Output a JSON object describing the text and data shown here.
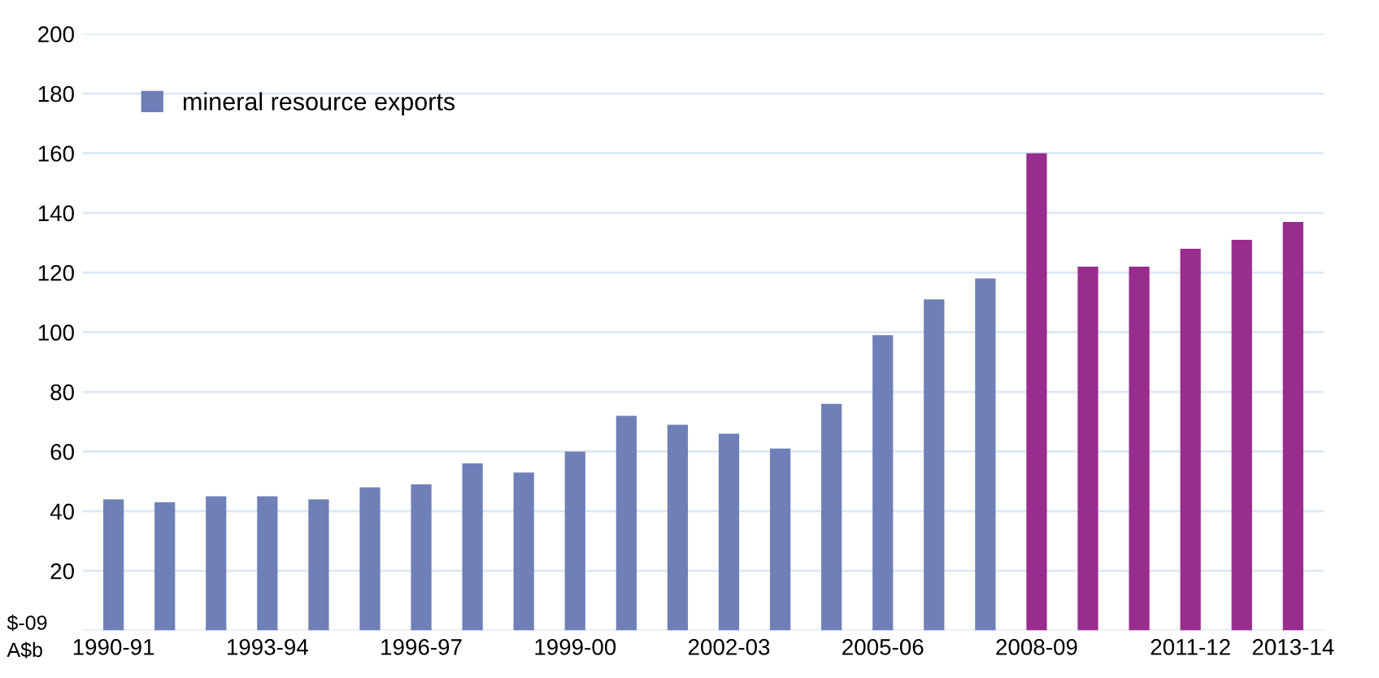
{
  "chart_data": {
    "type": "bar",
    "ylabel": "A$b",
    "categories": [
      "1990-91",
      null,
      null,
      "1993-94",
      null,
      null,
      "1996-97",
      null,
      null,
      "1999-00",
      null,
      null,
      "2002-03",
      null,
      null,
      "2005-06",
      null,
      null,
      "2008-09",
      null,
      null,
      "2011-12",
      null,
      "2013-14"
    ],
    "series": [
      {
        "name": "mineral resource exports",
        "color": "#6f7fb8",
        "colors": [
          "#6f7fb8",
          "#6f7fb8",
          "#6f7fb8",
          "#6f7fb8",
          "#6f7fb8",
          "#6f7fb8",
          "#6f7fb8",
          "#6f7fb8",
          "#6f7fb8",
          "#6f7fb8",
          "#6f7fb8",
          "#6f7fb8",
          "#6f7fb8",
          "#6f7fb8",
          "#6f7fb8",
          "#6f7fb8",
          "#6f7fb8",
          "#6f7fb8",
          "#992d8e",
          "#992d8e",
          "#992d8e",
          "#992d8e",
          "#992d8e",
          "#992d8e"
        ],
        "values": [
          44,
          43,
          45,
          45,
          44,
          48,
          49,
          56,
          53,
          60,
          72,
          69,
          66,
          61,
          76,
          99,
          111,
          118,
          160,
          122,
          122,
          128,
          131,
          137
        ]
      }
    ],
    "ylim": [
      0,
      200
    ],
    "annotations": [
      "$-09"
    ],
    "yticks": [
      {
        "value": 0,
        "label": null
      },
      20,
      40,
      60,
      80,
      100,
      120,
      140,
      160,
      180,
      200
    ],
    "grid": "y",
    "legend": "top left"
  }
}
